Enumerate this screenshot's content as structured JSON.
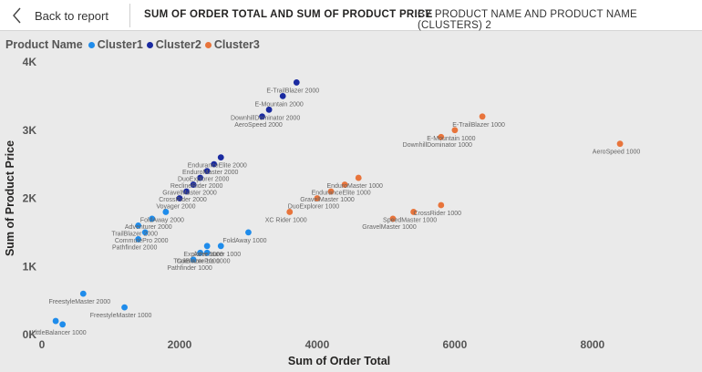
{
  "header": {
    "back_label": "Back to report",
    "title": "SUM OF ORDER TOTAL AND SUM OF PRODUCT PRICE",
    "subtitle": "BY PRODUCT NAME AND PRODUCT NAME (CLUSTERS) 2"
  },
  "legend": {
    "title": "Product Name",
    "items": [
      {
        "label": "Cluster1",
        "color": "#1f8ceb"
      },
      {
        "label": "Cluster2",
        "color": "#1a2aa0"
      },
      {
        "label": "Cluster3",
        "color": "#e8743b"
      }
    ]
  },
  "chart_data": {
    "type": "scatter",
    "xlabel": "Sum of Order Total",
    "ylabel": "Sum of Product Price",
    "xlim": [
      0,
      9300
    ],
    "ylim": [
      0,
      4000
    ],
    "x_ticks": [
      {
        "v": 0,
        "label": "0"
      },
      {
        "v": 2000,
        "label": "2000"
      },
      {
        "v": 4000,
        "label": "4000"
      },
      {
        "v": 6000,
        "label": "6000"
      },
      {
        "v": 8000,
        "label": "8000"
      }
    ],
    "y_ticks": [
      {
        "v": 0,
        "label": "0K"
      },
      {
        "v": 1000,
        "label": "1K"
      },
      {
        "v": 2000,
        "label": "2K"
      },
      {
        "v": 3000,
        "label": "3K"
      },
      {
        "v": 4000,
        "label": "4K"
      }
    ],
    "series": [
      {
        "name": "Cluster1",
        "color": "#1f8ceb",
        "points": [
          {
            "label": "LittleBalancer 1000",
            "x": 300,
            "y": 150
          },
          {
            "label": "",
            "x": 200,
            "y": 200
          },
          {
            "label": "FreestyleMaster 2000",
            "x": 600,
            "y": 600
          },
          {
            "label": "FreestyleMaster 1000",
            "x": 1200,
            "y": 400
          },
          {
            "label": "Pathfinder 1000",
            "x": 2200,
            "y": 1100
          },
          {
            "label": "TrailBlazer 1000",
            "x": 2300,
            "y": 1200
          },
          {
            "label": "CommutePro 1000",
            "x": 2400,
            "y": 1200
          },
          {
            "label": "Explorer 1000",
            "x": 2400,
            "y": 1300
          },
          {
            "label": "Adventurer 1000",
            "x": 2600,
            "y": 1300
          },
          {
            "label": "FoldAway 1000",
            "x": 3000,
            "y": 1500
          },
          {
            "label": "Pathfinder 2000",
            "x": 1400,
            "y": 1400
          },
          {
            "label": "CommutePro 2000",
            "x": 1500,
            "y": 1500
          },
          {
            "label": "TrailBlazer 2000",
            "x": 1400,
            "y": 1600
          },
          {
            "label": "Adventurer 2000",
            "x": 1600,
            "y": 1700
          },
          {
            "label": "FoldAway 2000",
            "x": 1800,
            "y": 1800
          }
        ]
      },
      {
        "name": "Cluster2",
        "color": "#1a2aa0",
        "points": [
          {
            "label": "Voyager 2000",
            "x": 2000,
            "y": 2000
          },
          {
            "label": "CrossRider 2000",
            "x": 2100,
            "y": 2100
          },
          {
            "label": "GravelMaster 2000",
            "x": 2200,
            "y": 2200
          },
          {
            "label": "ReclineRider 2000",
            "x": 2300,
            "y": 2300
          },
          {
            "label": "DuoExplorer 2000",
            "x": 2400,
            "y": 2400
          },
          {
            "label": "EnduroMaster 2000",
            "x": 2500,
            "y": 2500
          },
          {
            "label": "EnduranceElite 2000",
            "x": 2600,
            "y": 2600
          },
          {
            "label": "AeroSpeed 2000",
            "x": 3200,
            "y": 3200
          },
          {
            "label": "DownhillDominator 2000",
            "x": 3300,
            "y": 3300
          },
          {
            "label": "E-Mountain 2000",
            "x": 3500,
            "y": 3500
          },
          {
            "label": "E-TrailBlazer 2000",
            "x": 3700,
            "y": 3700
          }
        ]
      },
      {
        "name": "Cluster3",
        "color": "#e8743b",
        "points": [
          {
            "label": "XC Rider 1000",
            "x": 3600,
            "y": 1800
          },
          {
            "label": "DuoExplorer 1000",
            "x": 4000,
            "y": 2000
          },
          {
            "label": "GravelMaster 1000",
            "x": 4200,
            "y": 2100
          },
          {
            "label": "EnduranceElite 1000",
            "x": 4400,
            "y": 2200
          },
          {
            "label": "EnduroMaster 1000",
            "x": 4600,
            "y": 2300
          },
          {
            "label": "GravelMaster 1000",
            "x": 5100,
            "y": 1700
          },
          {
            "label": "SpeedMaster 1000",
            "x": 5400,
            "y": 1800
          },
          {
            "label": "CrossRider 1000",
            "x": 5800,
            "y": 1900
          },
          {
            "label": "DownhillDominator 1000",
            "x": 5800,
            "y": 2900
          },
          {
            "label": "E-Mountain 1000",
            "x": 6000,
            "y": 3000
          },
          {
            "label": "E-TrailBlazer 1000",
            "x": 6400,
            "y": 3200
          },
          {
            "label": "AeroSpeed 1000",
            "x": 8400,
            "y": 2800
          }
        ]
      }
    ]
  }
}
